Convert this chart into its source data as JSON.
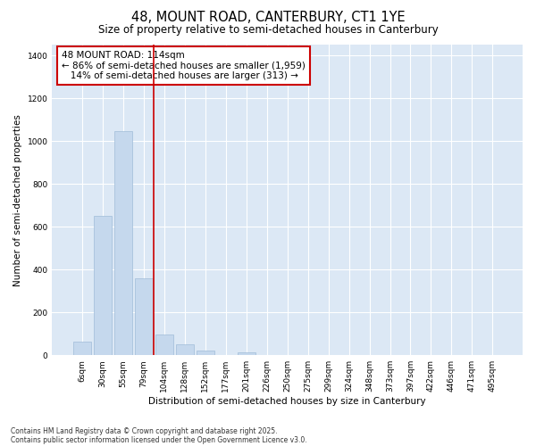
{
  "title": "48, MOUNT ROAD, CANTERBURY, CT1 1YE",
  "subtitle": "Size of property relative to semi-detached houses in Canterbury",
  "xlabel": "Distribution of semi-detached houses by size in Canterbury",
  "ylabel": "Number of semi-detached properties",
  "footnote1": "Contains HM Land Registry data © Crown copyright and database right 2025.",
  "footnote2": "Contains public sector information licensed under the Open Government Licence v3.0.",
  "categories": [
    "6sqm",
    "30sqm",
    "55sqm",
    "79sqm",
    "104sqm",
    "128sqm",
    "152sqm",
    "177sqm",
    "201sqm",
    "226sqm",
    "250sqm",
    "275sqm",
    "299sqm",
    "324sqm",
    "348sqm",
    "373sqm",
    "397sqm",
    "422sqm",
    "446sqm",
    "471sqm",
    "495sqm"
  ],
  "values": [
    65,
    650,
    1045,
    360,
    95,
    50,
    20,
    0,
    15,
    0,
    0,
    0,
    0,
    0,
    0,
    0,
    0,
    0,
    0,
    0,
    0
  ],
  "bar_color": "#c5d8ed",
  "bar_edge_color": "#a0bcd8",
  "vline_x": 3.5,
  "vline_color": "#cc0000",
  "annotation_text": "48 MOUNT ROAD: 114sqm\n← 86% of semi-detached houses are smaller (1,959)\n   14% of semi-detached houses are larger (313) →",
  "annotation_box_color": "#cc0000",
  "annotation_fontsize": 7.5,
  "ylim": [
    0,
    1450
  ],
  "yticks": [
    0,
    200,
    400,
    600,
    800,
    1000,
    1200,
    1400
  ],
  "bg_color": "#ffffff",
  "plot_bg_color": "#dce8f5",
  "grid_color": "#ffffff",
  "title_fontsize": 10.5,
  "subtitle_fontsize": 8.5,
  "axis_label_fontsize": 7.5,
  "tick_fontsize": 6.5,
  "footnote_fontsize": 5.5
}
